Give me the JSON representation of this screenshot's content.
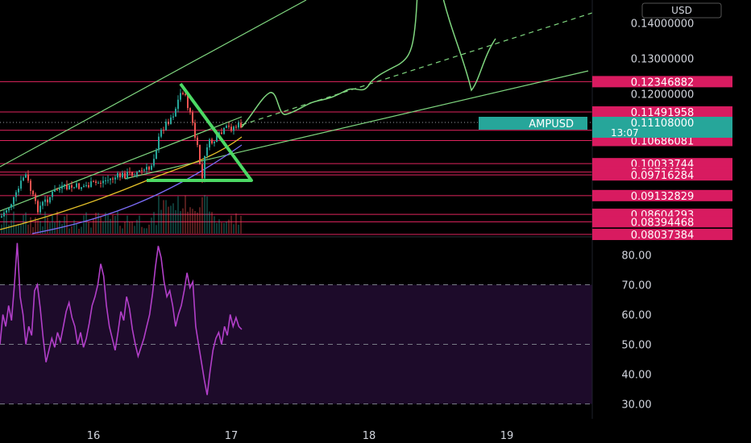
{
  "currency_label": "USD",
  "ticker": {
    "symbol": "AMPUSD",
    "price": "0.11108000",
    "countdown": "13:07",
    "color": "#26a69a"
  },
  "colors": {
    "level_line": "#e0245e",
    "level_badge": "#d81b60",
    "trend": "#7fd67f",
    "rsi": "#b23fc9",
    "rsi_band": "#1d0b2a"
  },
  "chart_data": [
    {
      "type": "line",
      "name": "price",
      "y_axis_labels": [
        "0.14000000",
        "0.13000000",
        "0.12000000"
      ],
      "price_levels": [
        "0.12346882",
        "0.11491958",
        "0.10976064",
        "0.10686081",
        "0.10033744",
        "0.09794914",
        "0.09716284",
        "0.09132829",
        "0.08604293",
        "0.08394468",
        "0.08037384"
      ],
      "current_price": 0.11108,
      "x_ticks": [
        "16",
        "17",
        "18",
        "19"
      ],
      "ylim": [
        0.0797,
        0.1465
      ],
      "grid": false
    },
    {
      "type": "line",
      "name": "rsi",
      "y_axis_labels": [
        "80.00",
        "70.00",
        "60.00",
        "50.00",
        "40.00",
        "30.00"
      ],
      "ylim": [
        25,
        85
      ],
      "band": [
        30,
        70
      ],
      "midline": 50,
      "x_ticks": [
        "16",
        "17",
        "18",
        "19"
      ],
      "values": [
        50,
        60,
        56,
        63,
        58,
        70,
        84,
        66,
        60,
        50,
        56,
        53,
        68,
        70,
        62,
        52,
        44,
        48,
        52,
        49,
        54,
        51,
        56,
        61,
        64,
        59,
        56,
        50,
        54,
        49,
        52,
        57,
        63,
        66,
        70,
        77,
        73,
        63,
        56,
        52,
        48,
        54,
        61,
        58,
        66,
        62,
        55,
        50,
        46,
        49,
        52,
        56,
        60,
        67,
        76,
        83,
        79,
        71,
        66,
        68,
        63,
        56,
        60,
        63,
        68,
        74,
        69,
        71,
        56,
        50,
        44,
        38,
        33,
        41,
        48,
        52,
        54,
        50,
        56,
        53,
        60,
        56,
        59,
        56,
        55
      ]
    }
  ]
}
